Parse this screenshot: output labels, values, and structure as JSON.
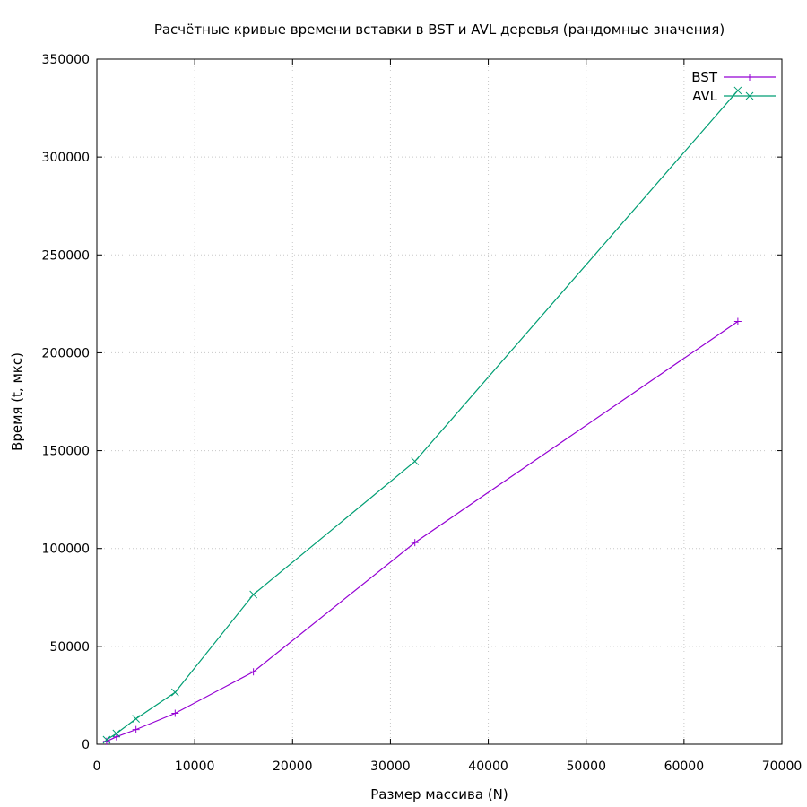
{
  "chart_data": {
    "type": "line",
    "title": "Расчётные кривые времени вставки в BST и AVL деревья (рандомные значения)",
    "xlabel": "Размер массива (N)",
    "ylabel": "Время (t, мкс)",
    "xlim": [
      0,
      70000
    ],
    "ylim": [
      0,
      350000
    ],
    "xticks": [
      "0",
      "10000",
      "20000",
      "30000",
      "40000",
      "50000",
      "60000",
      "70000"
    ],
    "yticks": [
      "0",
      "50000",
      "100000",
      "150000",
      "200000",
      "250000",
      "300000",
      "350000"
    ],
    "grid": true,
    "legend_position": "top-right",
    "series": [
      {
        "name": "BST",
        "color": "#9400d3",
        "marker": "plus",
        "points": [
          [
            1000,
            1500
          ],
          [
            2000,
            3800
          ],
          [
            4000,
            7500
          ],
          [
            8000,
            15800
          ],
          [
            16000,
            37000
          ],
          [
            32500,
            103000
          ],
          [
            65500,
            216000
          ]
        ]
      },
      {
        "name": "AVL",
        "color": "#009e73",
        "marker": "cross",
        "points": [
          [
            1000,
            2300
          ],
          [
            2000,
            5500
          ],
          [
            4000,
            13000
          ],
          [
            8000,
            26500
          ],
          [
            16000,
            76500
          ],
          [
            32500,
            144500
          ],
          [
            65500,
            334000
          ]
        ]
      }
    ]
  }
}
